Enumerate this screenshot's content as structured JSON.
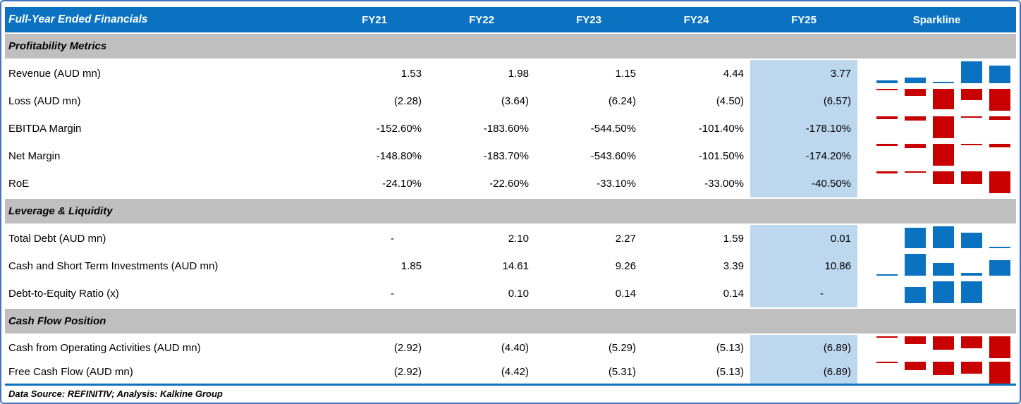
{
  "table": {
    "title": "Full-Year Ended Financials",
    "columns": [
      "FY21",
      "FY22",
      "FY23",
      "FY24",
      "FY25"
    ],
    "sparkline_header": "Sparkline",
    "sections": [
      {
        "label": "Profitability Metrics",
        "rows": [
          {
            "label": "Revenue (AUD mn)",
            "values": [
              "1.53",
              "1.98",
              "1.15",
              "4.44",
              "3.77"
            ],
            "spark": {
              "dir": "up",
              "color": "blue",
              "bars": [
                0.12,
                0.25,
                0.03,
                1,
                0.8
              ]
            }
          },
          {
            "label": "Loss (AUD mn)",
            "values": [
              "(2.28)",
              "(3.64)",
              "(6.24)",
              "(4.50)",
              "(6.57)"
            ],
            "spark": {
              "dir": "down",
              "color": "red",
              "bars": [
                0.03,
                0.32,
                0.92,
                0.52,
                1
              ]
            }
          },
          {
            "label": "EBITDA Margin",
            "values": [
              "-152.60%",
              "-183.60%",
              "-544.50%",
              "-101.40%",
              "-178.10%"
            ],
            "spark": {
              "dir": "down",
              "color": "red",
              "bars": [
                0.12,
                0.19,
                1,
                0.03,
                0.17
              ]
            }
          },
          {
            "label": "Net Margin",
            "values": [
              "-148.80%",
              "-183.70%",
              "-543.60%",
              "-101.50%",
              "-174.20%"
            ],
            "spark": {
              "dir": "down",
              "color": "red",
              "bars": [
                0.11,
                0.19,
                1,
                0.03,
                0.16
              ]
            }
          },
          {
            "label": "RoE",
            "values": [
              "-24.10%",
              "-22.60%",
              "-33.10%",
              "-33.00%",
              "-40.50%"
            ],
            "spark": {
              "dir": "down",
              "color": "red",
              "bars": [
                0.1,
                0.03,
                0.59,
                0.58,
                1
              ]
            }
          }
        ]
      },
      {
        "label": "Leverage & Liquidity",
        "rows": [
          {
            "label": "Total Debt (AUD mn)",
            "values": [
              "-",
              "2.10",
              "2.27",
              "1.59",
              "0.01"
            ],
            "spark": {
              "dir": "up",
              "color": "blue",
              "bars": [
                null,
                0.92,
                1,
                0.7,
                0.03
              ]
            }
          },
          {
            "label": "Cash and Short Term Investments (AUD mn)",
            "values": [
              "1.85",
              "14.61",
              "9.26",
              "3.39",
              "10.86"
            ],
            "spark": {
              "dir": "up",
              "color": "blue",
              "bars": [
                0.03,
                1,
                0.58,
                0.12,
                0.71
              ]
            }
          },
          {
            "label": "Debt-to-Equity Ratio (x)",
            "values": [
              "-",
              "0.10",
              "0.14",
              "0.14",
              "-"
            ],
            "spark": {
              "dir": "up",
              "color": "blue",
              "bars": [
                null,
                0.75,
                1,
                1,
                null
              ]
            }
          }
        ]
      },
      {
        "label": "Cash Flow Position",
        "rows": [
          {
            "label": "Cash from Operating Activities (AUD mn)",
            "values": [
              "(2.92)",
              "(4.40)",
              "(5.29)",
              "(5.13)",
              "(6.89)"
            ],
            "spark": {
              "dir": "down",
              "color": "red",
              "bars": [
                0.03,
                0.37,
                0.6,
                0.56,
                1
              ]
            }
          },
          {
            "label": "Free Cash Flow (AUD mn)",
            "values": [
              "(2.92)",
              "(4.42)",
              "(5.31)",
              "(5.13)",
              "(6.89)"
            ],
            "spark": {
              "dir": "down",
              "color": "red",
              "bars": [
                0.03,
                0.38,
                0.6,
                0.56,
                1
              ]
            }
          }
        ]
      }
    ],
    "footer": "Data Source: REFINITIV; Analysis: Kalkine Group"
  },
  "colors": {
    "header_bg": "#0b72c2",
    "section_bg": "#bfbfbf",
    "fy25_highlight": "#bdd7ee",
    "positive_bar": "#0b72c2",
    "negative_bar": "#c80000",
    "frame_border": "#4472c4"
  }
}
